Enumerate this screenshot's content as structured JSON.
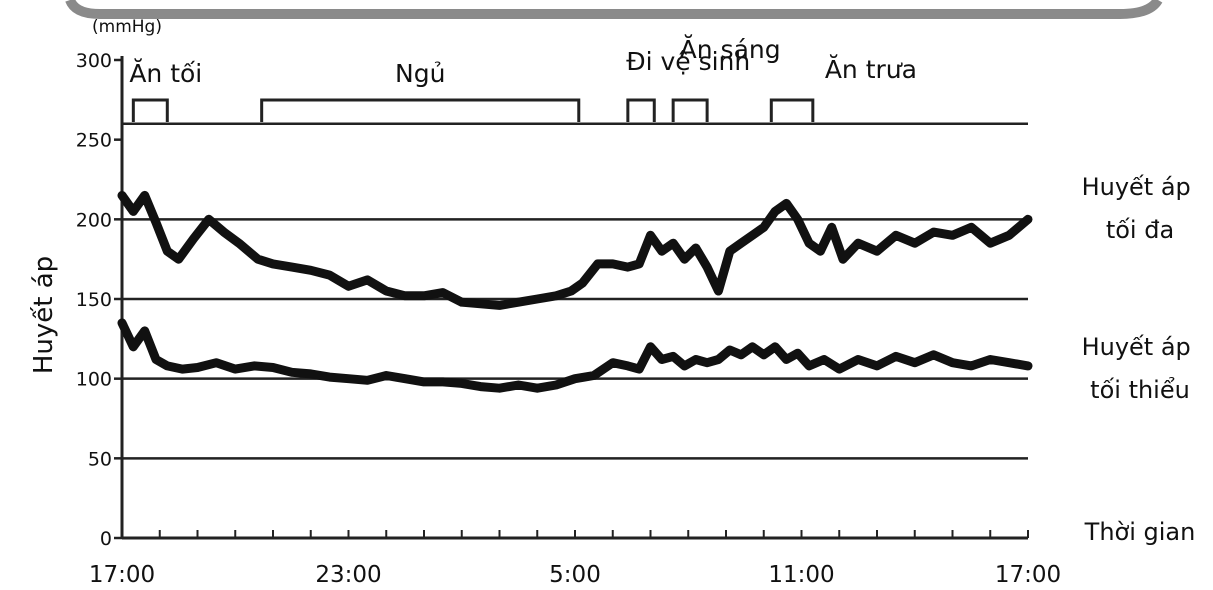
{
  "chart_data": {
    "type": "line",
    "unit": "(mmHg)",
    "ylabel": "Huyết áp",
    "xlabel": "Thời gian",
    "ylim": [
      0,
      300
    ],
    "yticks": [
      0,
      50,
      100,
      150,
      200,
      250,
      300
    ],
    "grid_lines_y": [
      50,
      100,
      150,
      200,
      260
    ],
    "x_start_hour": 17,
    "x_end_hour": 41,
    "xtick_labels": [
      {
        "hour": 17,
        "label": "17:00"
      },
      {
        "hour": 23,
        "label": "23:00"
      },
      {
        "hour": 29,
        "label": "5:00"
      },
      {
        "hour": 35,
        "label": "11:00"
      },
      {
        "hour": 41,
        "label": "17:00"
      }
    ],
    "activities": [
      {
        "label": "Ăn tối",
        "start": 17.3,
        "end": 18.2
      },
      {
        "label": "Ngủ",
        "start": 20.7,
        "end": 29.1
      },
      {
        "label": "Đi vệ sinh",
        "start": 30.4,
        "end": 31.1
      },
      {
        "label": "Ăn sáng",
        "start": 31.6,
        "end": 32.5
      },
      {
        "label": "Ăn trưa",
        "start": 34.2,
        "end": 35.3
      }
    ],
    "series": [
      {
        "name": "Huyết áp tối đa",
        "x": [
          17.0,
          17.3,
          17.6,
          17.9,
          18.2,
          18.5,
          18.9,
          19.3,
          19.7,
          20.1,
          20.6,
          21.0,
          21.5,
          22.0,
          22.5,
          23.0,
          23.5,
          24.0,
          24.5,
          25.0,
          25.5,
          26.0,
          26.5,
          27.0,
          27.5,
          28.0,
          28.5,
          28.9,
          29.2,
          29.6,
          30.0,
          30.4,
          30.7,
          31.0,
          31.3,
          31.6,
          31.9,
          32.2,
          32.5,
          32.8,
          33.1,
          33.4,
          33.7,
          34.0,
          34.3,
          34.6,
          34.9,
          35.2,
          35.5,
          35.8,
          36.1,
          36.5,
          37.0,
          37.5,
          38.0,
          38.5,
          39.0,
          39.5,
          40.0,
          40.5,
          41.0
        ],
        "values": [
          215,
          205,
          215,
          198,
          180,
          175,
          188,
          200,
          192,
          185,
          175,
          172,
          170,
          168,
          165,
          158,
          162,
          155,
          152,
          152,
          154,
          148,
          147,
          146,
          148,
          150,
          152,
          155,
          160,
          172,
          172,
          170,
          172,
          190,
          180,
          185,
          175,
          182,
          170,
          155,
          180,
          185,
          190,
          195,
          205,
          210,
          200,
          185,
          180,
          195,
          175,
          185,
          180,
          190,
          185,
          192,
          190,
          195,
          185,
          190,
          200
        ]
      },
      {
        "name": "Huyết áp tối thiểu",
        "x": [
          17.0,
          17.3,
          17.6,
          17.9,
          18.2,
          18.6,
          19.0,
          19.5,
          20.0,
          20.5,
          21.0,
          21.5,
          22.0,
          22.5,
          23.0,
          23.5,
          24.0,
          24.5,
          25.0,
          25.5,
          26.0,
          26.5,
          27.0,
          27.5,
          28.0,
          28.5,
          29.0,
          29.5,
          30.0,
          30.4,
          30.7,
          31.0,
          31.3,
          31.6,
          31.9,
          32.2,
          32.5,
          32.8,
          33.1,
          33.4,
          33.7,
          34.0,
          34.3,
          34.6,
          34.9,
          35.2,
          35.6,
          36.0,
          36.5,
          37.0,
          37.5,
          38.0,
          38.5,
          39.0,
          39.5,
          40.0,
          40.5,
          41.0
        ],
        "values": [
          135,
          120,
          130,
          112,
          108,
          106,
          107,
          110,
          106,
          108,
          107,
          104,
          103,
          101,
          100,
          99,
          102,
          100,
          98,
          98,
          97,
          95,
          94,
          96,
          94,
          96,
          100,
          102,
          110,
          108,
          106,
          120,
          112,
          114,
          108,
          112,
          110,
          112,
          118,
          115,
          120,
          115,
          120,
          112,
          116,
          108,
          112,
          106,
          112,
          108,
          114,
          110,
          115,
          110,
          108,
          112,
          110,
          108
        ]
      }
    ],
    "series_labels": [
      {
        "lines": [
          "Huyết áp",
          "tối đa"
        ]
      },
      {
        "lines": [
          "Huyết áp",
          "tối thiểu"
        ]
      }
    ]
  }
}
